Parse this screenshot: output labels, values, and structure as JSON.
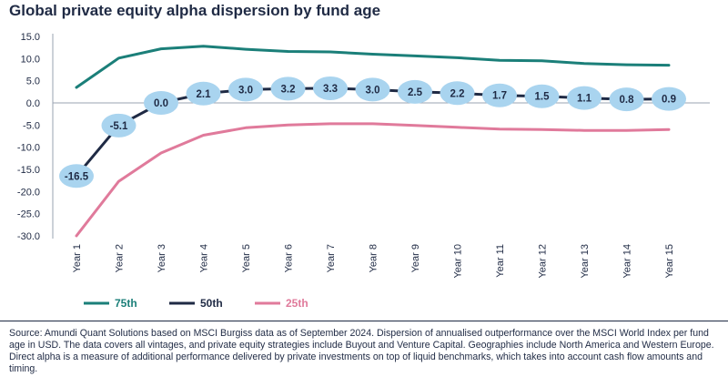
{
  "chart_data": {
    "type": "line",
    "title": "Global private equity alpha dispersion by fund age",
    "categories": [
      "Year 1",
      "Year 2",
      "Year 3",
      "Year 4",
      "Year 5",
      "Year 6",
      "Year 7",
      "Year 8",
      "Year 9",
      "Year 10",
      "Year 11",
      "Year 12",
      "Year 13",
      "Year 14",
      "Year 15"
    ],
    "ylim": [
      -30,
      15
    ],
    "yticks": [
      "15.0",
      "10.0",
      "5.0",
      "0.0",
      "-5.0",
      "-10.0",
      "-15.0",
      "-20.0",
      "-25.0",
      "-30.0"
    ],
    "series": [
      {
        "name": "75th",
        "color": "#1b7f79",
        "values": [
          3.5,
          10.1,
          12.2,
          12.8,
          12.1,
          11.6,
          11.5,
          11.0,
          10.6,
          10.2,
          9.6,
          9.5,
          8.9,
          8.6,
          8.5
        ]
      },
      {
        "name": "50th",
        "color": "#1f2a44",
        "values": [
          -16.5,
          -5.1,
          0.0,
          2.1,
          3.0,
          3.2,
          3.3,
          3.0,
          2.5,
          2.2,
          1.7,
          1.5,
          1.1,
          0.8,
          0.9
        ],
        "labels": [
          "-16.5",
          "-5.1",
          "0.0",
          "2.1",
          "3.0",
          "3.2",
          "3.3",
          "3.0",
          "2.5",
          "2.2",
          "1.7",
          "1.5",
          "1.1",
          "0.8",
          "0.9"
        ]
      },
      {
        "name": "25th",
        "color": "#e07a9b",
        "values": [
          -30.0,
          -17.7,
          -11.3,
          -7.3,
          -5.6,
          -5.0,
          -4.7,
          -4.7,
          -5.1,
          -5.5,
          -5.9,
          -6.0,
          -6.2,
          -6.2,
          -6.0
        ]
      }
    ],
    "bubble_color": "#a9d4ef",
    "legend": [
      "75th",
      "50th",
      "25th"
    ],
    "legend_placement": "bottom-left"
  },
  "source_note": "Source: Amundi Quant Solutions based on MSCI Burgiss data as of September 2024. Dispersion of annualised outperformance over the MSCI World Index per fund age in USD. The data covers all vintages, and private equity strategies include Buyout and Venture Capital. Geographies include North America and Western Europe. Direct alpha is a measure of additional performance delivered by private investments on top of liquid benchmarks, which takes into account cash flow amounts and timing."
}
